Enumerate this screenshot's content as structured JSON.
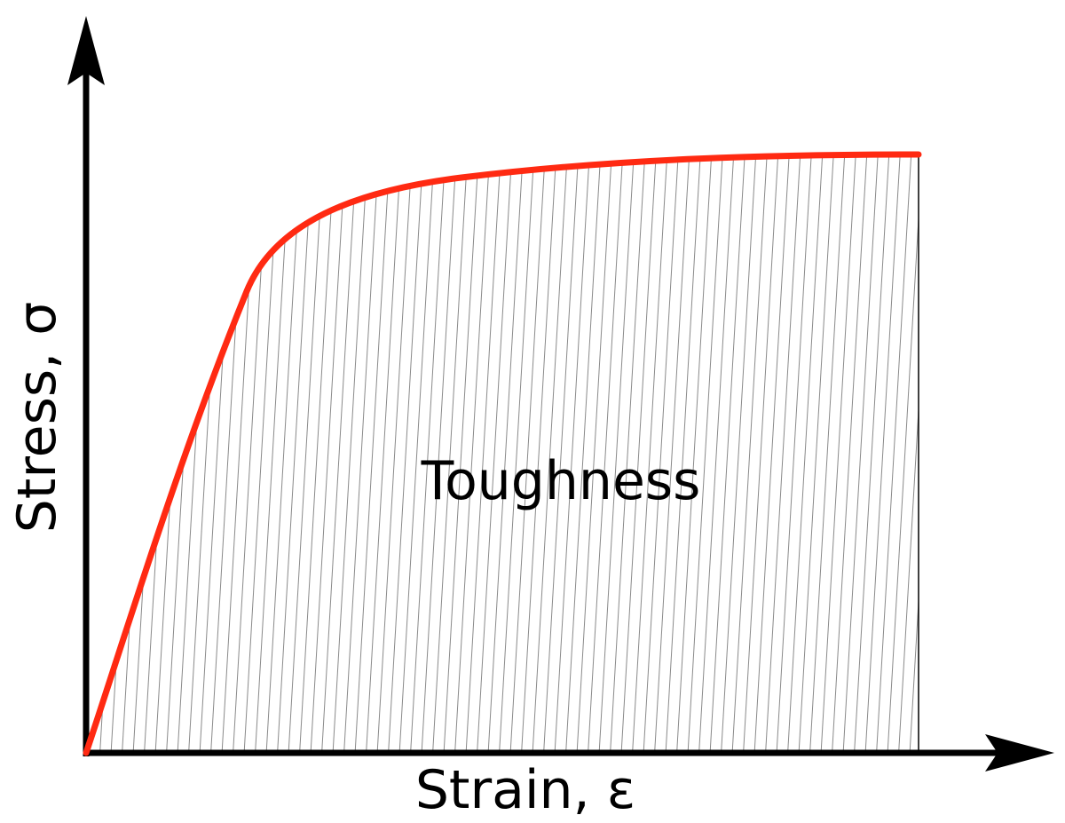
{
  "labels": {
    "x_axis": "Strain, ε",
    "y_axis": "Stress, σ",
    "area": "Toughness"
  },
  "colors": {
    "curve": "#ff2a12",
    "axes": "#000000",
    "hatch": "#8a8a8a",
    "background": "#ffffff"
  }
}
